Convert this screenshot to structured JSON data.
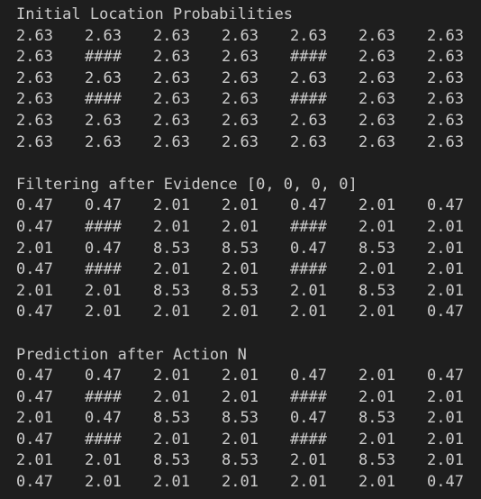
{
  "sections": [
    {
      "title": "Initial Location Probabilities",
      "rows": [
        [
          "2.63",
          "2.63",
          "2.63",
          "2.63",
          "2.63",
          "2.63",
          "2.63"
        ],
        [
          "2.63",
          "####",
          "2.63",
          "2.63",
          "####",
          "2.63",
          "2.63"
        ],
        [
          "2.63",
          "2.63",
          "2.63",
          "2.63",
          "2.63",
          "2.63",
          "2.63"
        ],
        [
          "2.63",
          "####",
          "2.63",
          "2.63",
          "####",
          "2.63",
          "2.63"
        ],
        [
          "2.63",
          "2.63",
          "2.63",
          "2.63",
          "2.63",
          "2.63",
          "2.63"
        ],
        [
          "2.63",
          "2.63",
          "2.63",
          "2.63",
          "2.63",
          "2.63",
          "2.63"
        ]
      ]
    },
    {
      "title": "Filtering after Evidence [0, 0, 0, 0]",
      "rows": [
        [
          "0.47",
          "0.47",
          "2.01",
          "2.01",
          "0.47",
          "2.01",
          "0.47"
        ],
        [
          "0.47",
          "####",
          "2.01",
          "2.01",
          "####",
          "2.01",
          "2.01"
        ],
        [
          "2.01",
          "0.47",
          "8.53",
          "8.53",
          "0.47",
          "8.53",
          "2.01"
        ],
        [
          "0.47",
          "####",
          "2.01",
          "2.01",
          "####",
          "2.01",
          "2.01"
        ],
        [
          "2.01",
          "2.01",
          "8.53",
          "8.53",
          "2.01",
          "8.53",
          "2.01"
        ],
        [
          "0.47",
          "2.01",
          "2.01",
          "2.01",
          "2.01",
          "2.01",
          "0.47"
        ]
      ]
    },
    {
      "title": "Prediction after Action N",
      "rows": [
        [
          "0.47",
          "0.47",
          "2.01",
          "2.01",
          "0.47",
          "2.01",
          "0.47"
        ],
        [
          "0.47",
          "####",
          "2.01",
          "2.01",
          "####",
          "2.01",
          "2.01"
        ],
        [
          "2.01",
          "0.47",
          "8.53",
          "8.53",
          "0.47",
          "8.53",
          "2.01"
        ],
        [
          "0.47",
          "####",
          "2.01",
          "2.01",
          "####",
          "2.01",
          "2.01"
        ],
        [
          "2.01",
          "2.01",
          "8.53",
          "8.53",
          "2.01",
          "8.53",
          "2.01"
        ],
        [
          "0.47",
          "2.01",
          "2.01",
          "2.01",
          "2.01",
          "2.01",
          "0.47"
        ]
      ]
    }
  ],
  "colors": {
    "background": "#1e1e1e",
    "text": "#cccccc"
  }
}
